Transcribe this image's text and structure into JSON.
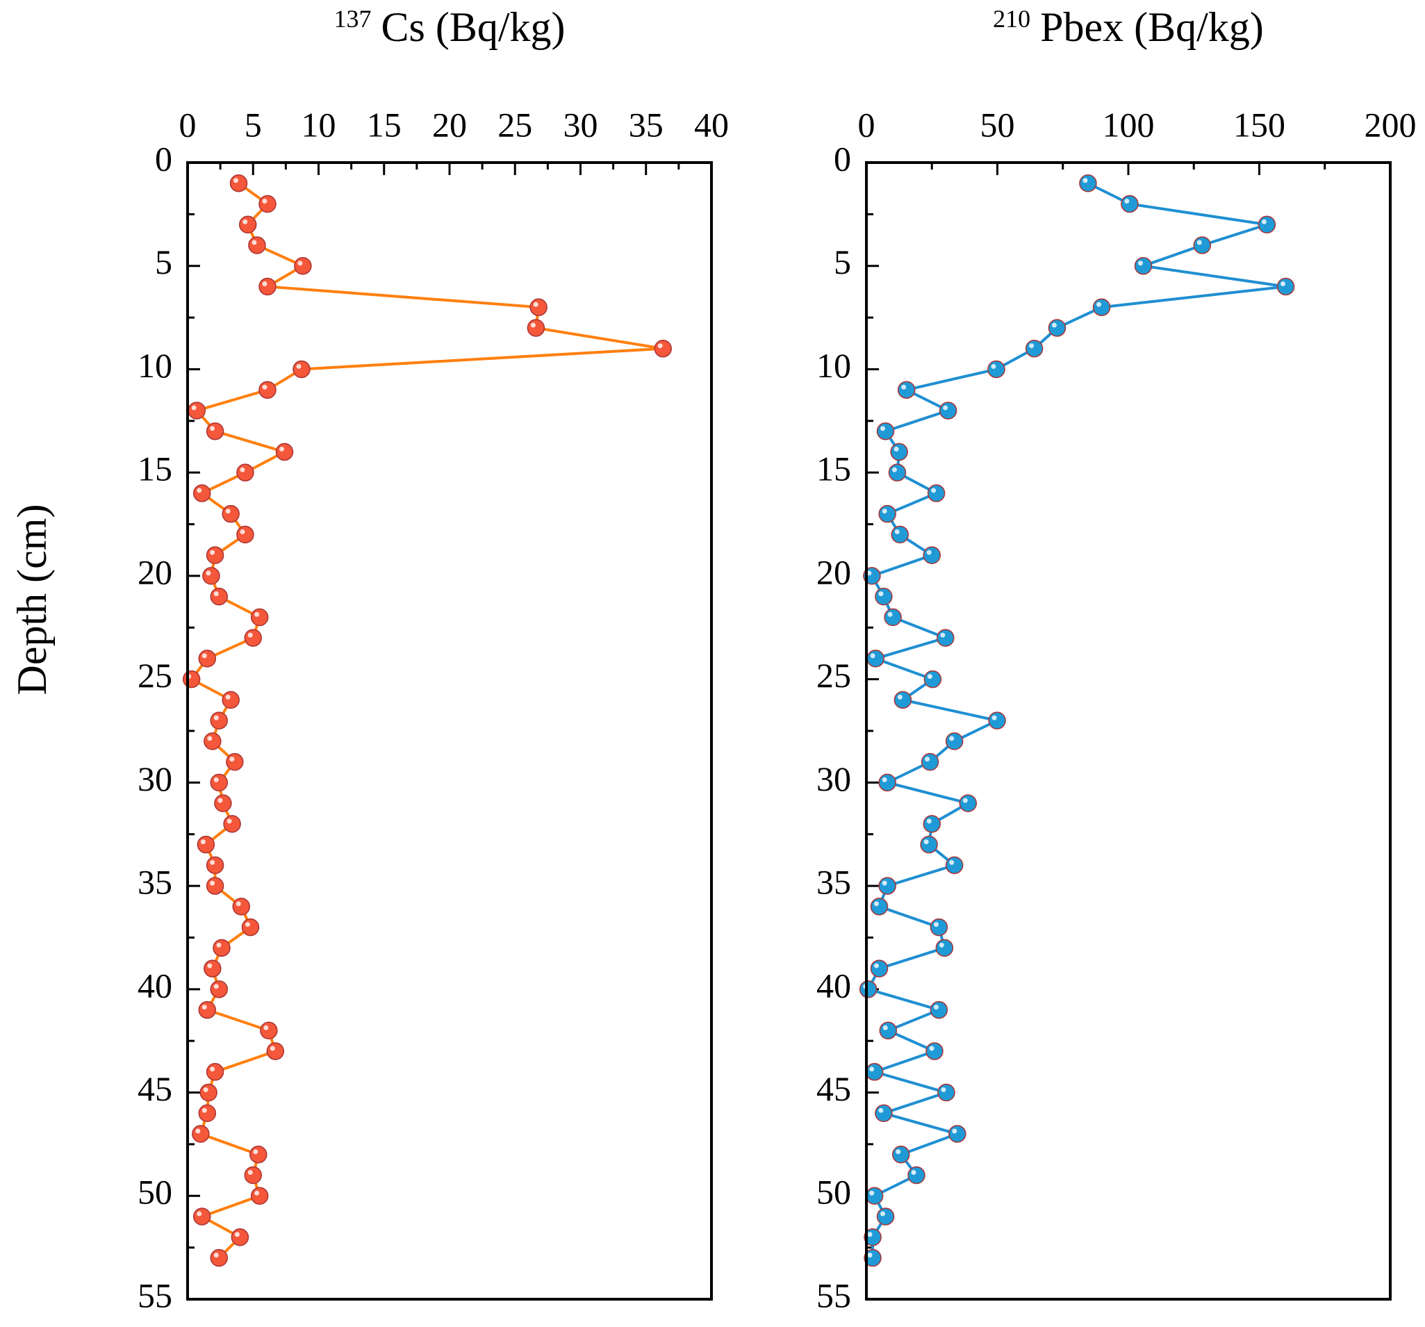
{
  "chart_data": [
    {
      "type": "line",
      "title_superscript": "137",
      "title": "Cs (Bq/kg)",
      "ylabel": "Depth (cm)",
      "color": "#ff7f0e",
      "marker_color": "#f4573a",
      "y_inverted": true,
      "xlim": [
        0,
        40
      ],
      "xticks": [
        0,
        5,
        10,
        15,
        20,
        25,
        30,
        35,
        40
      ],
      "ylim": [
        0,
        55
      ],
      "yticks": [
        0,
        5,
        10,
        15,
        20,
        25,
        30,
        35,
        40,
        45,
        50,
        55
      ],
      "y": [
        1,
        2,
        3,
        4,
        5,
        6,
        7,
        8,
        9,
        10,
        11,
        12,
        13,
        14,
        15,
        16,
        17,
        18,
        19,
        20,
        21,
        22,
        23,
        24,
        25,
        26,
        27,
        28,
        29,
        30,
        31,
        32,
        33,
        34,
        35,
        36,
        37,
        38,
        39,
        40,
        41,
        42,
        43,
        44,
        45,
        46,
        47,
        48,
        49,
        50,
        51,
        52,
        53
      ],
      "x": [
        3.9,
        6.1,
        4.6,
        5.3,
        8.8,
        6.1,
        26.8,
        26.6,
        36.3,
        8.7,
        6.1,
        0.7,
        2.1,
        7.4,
        4.4,
        1.1,
        3.3,
        4.4,
        2.1,
        1.8,
        2.4,
        5.5,
        5.0,
        1.5,
        0.3,
        3.3,
        2.4,
        1.9,
        3.6,
        2.4,
        2.7,
        3.4,
        1.4,
        2.1,
        2.1,
        4.1,
        4.8,
        2.6,
        1.9,
        2.4,
        1.5,
        6.2,
        6.7,
        2.1,
        1.6,
        1.5,
        1.0,
        5.4,
        5.0,
        5.5,
        1.1,
        4.0,
        2.4
      ]
    },
    {
      "type": "line",
      "title_superscript": "210",
      "title": "Pbex (Bq/kg)",
      "color": "#1f8fd2",
      "marker_color": "#1f9ad6",
      "y_inverted": true,
      "xlim": [
        0,
        200
      ],
      "xticks": [
        0,
        50,
        100,
        150,
        200
      ],
      "ylim": [
        0,
        55
      ],
      "yticks": [
        0,
        5,
        10,
        15,
        20,
        25,
        30,
        35,
        40,
        45,
        50,
        55
      ],
      "y": [
        1,
        2,
        3,
        4,
        5,
        6,
        7,
        8,
        9,
        10,
        11,
        12,
        13,
        14,
        15,
        16,
        17,
        18,
        19,
        20,
        21,
        22,
        23,
        24,
        25,
        26,
        27,
        28,
        29,
        30,
        31,
        32,
        33,
        34,
        35,
        36,
        37,
        38,
        39,
        40,
        41,
        42,
        43,
        44,
        45,
        46,
        47,
        48,
        49,
        50,
        51,
        52,
        53
      ],
      "x": [
        84.6,
        100.5,
        152.9,
        128.2,
        105.7,
        160.1,
        89.8,
        72.8,
        64.1,
        49.6,
        15.3,
        31.2,
        7.3,
        12.5,
        11.8,
        26.7,
        8.0,
        12.8,
        25.0,
        2.1,
        6.6,
        10.1,
        30.2,
        3.5,
        25.3,
        13.9,
        49.9,
        33.6,
        24.3,
        8.0,
        38.8,
        25.0,
        23.9,
        33.6,
        8.0,
        4.9,
        27.7,
        29.8,
        4.9,
        0.7,
        27.7,
        8.3,
        26.0,
        3.1,
        30.5,
        6.6,
        34.7,
        13.2,
        19.1,
        3.1,
        7.3,
        2.4,
        2.4
      ]
    }
  ]
}
